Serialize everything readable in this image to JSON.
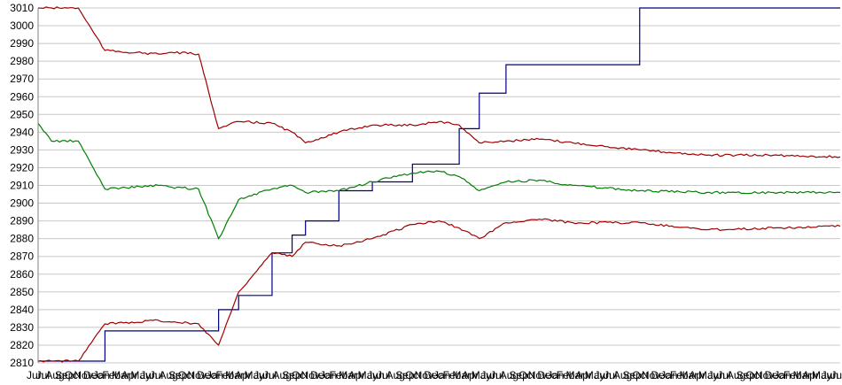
{
  "chart_data": {
    "type": "line",
    "title": "",
    "xlabel": "",
    "ylabel": "",
    "ylim": [
      2810,
      3010
    ],
    "yticks": [
      2810,
      2820,
      2830,
      2840,
      2850,
      2860,
      2870,
      2880,
      2890,
      2900,
      2910,
      2920,
      2930,
      2940,
      2950,
      2960,
      2970,
      2980,
      2990,
      3000,
      3010
    ],
    "x_tick_labels": [
      "Jun",
      "Jul",
      "Aug",
      "Sep",
      "Oct",
      "Nov",
      "Dec",
      "Jan",
      "Feb",
      "Mar",
      "Apr",
      "May",
      "Jun",
      "Jul",
      "Aug",
      "Sep",
      "Oct",
      "Nov",
      "Dec",
      "Jan",
      "Feb",
      "Mar",
      "Apr",
      "May",
      "Jun",
      "Jul",
      "Aug",
      "Sep",
      "Oct",
      "Nov",
      "Dec",
      "Jan",
      "Feb",
      "Mar",
      "Apr",
      "May",
      "Jun",
      "Jul",
      "Aug",
      "Sep",
      "Oct",
      "Nov",
      "Dec",
      "Jan",
      "Feb",
      "Mar",
      "Apr",
      "May",
      "Jun",
      "Jul",
      "Aug",
      "Sep",
      "Oct",
      "Nov",
      "Dec",
      "Jan",
      "Feb",
      "Mar",
      "Apr",
      "May",
      "Jun",
      "Jul",
      "Aug",
      "Sep",
      "Oct",
      "Nov",
      "Dec",
      "Jan",
      "Feb",
      "Mar",
      "Apr",
      "May",
      "Jun",
      "Jul",
      "Aug",
      "Sep",
      "Oct",
      "Nov",
      "Dec",
      "Jan",
      "Feb",
      "Mar",
      "Apr",
      "May",
      "Jun",
      "Jul"
    ],
    "grid": true,
    "legend": "none",
    "x": [
      0,
      2,
      6,
      10,
      18,
      20,
      24,
      27,
      30,
      35,
      38,
      40,
      45,
      50,
      56,
      60,
      63,
      66,
      70,
      75,
      80,
      90,
      100,
      110,
      120
    ],
    "series": [
      {
        "color": "#000080",
        "values": [
          2811,
          2811,
          2811,
          2828,
          2828,
          2828,
          2828,
          2840,
          2848,
          2872,
          2882,
          2890,
          2907,
          2912,
          2922,
          2922,
          2942,
          2962,
          2978,
          2978,
          2978,
          3010,
          3010,
          3010,
          3010
        ]
      },
      {
        "color": "#a00000",
        "values": [
          3010,
          3010,
          3010,
          2986,
          2984,
          2985,
          2984,
          2942,
          2946,
          2945,
          2940,
          2934,
          2940,
          2944,
          2944,
          2946,
          2944,
          2934,
          2935,
          2936,
          2934,
          2930,
          2927,
          2927,
          2926
        ]
      },
      {
        "color": "#008000",
        "values": [
          2945,
          2935,
          2935,
          2908,
          2910,
          2909,
          2908,
          2880,
          2902,
          2908,
          2910,
          2906,
          2907,
          2912,
          2917,
          2918,
          2915,
          2907,
          2912,
          2913,
          2910,
          2907,
          2906,
          2906,
          2906
        ]
      },
      {
        "color": "#a00000",
        "values": [
          2811,
          2811,
          2811,
          2832,
          2834,
          2833,
          2832,
          2820,
          2850,
          2872,
          2870,
          2878,
          2876,
          2880,
          2888,
          2890,
          2886,
          2880,
          2889,
          2891,
          2889,
          2889,
          2885,
          2886,
          2887
        ]
      }
    ]
  }
}
